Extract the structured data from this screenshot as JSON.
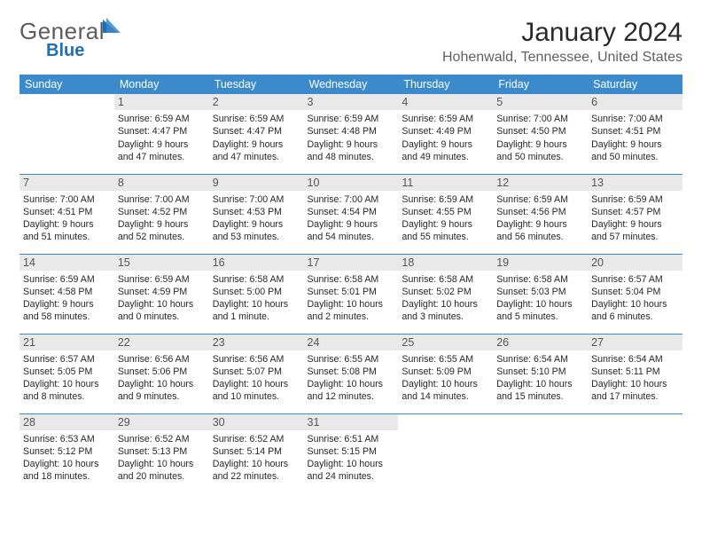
{
  "colors": {
    "header_bg": "#3b8acb",
    "header_text": "#ffffff",
    "daynum_bg": "#e9e9e9",
    "daynum_text": "#555555",
    "body_text": "#272727",
    "rule": "#3b8acb",
    "logo_gray": "#5c5c5c",
    "logo_blue": "#1f6fb2",
    "title_text": "#2a2a2a",
    "subtitle_text": "#606060"
  },
  "logo": {
    "word1": "General",
    "word2": "Blue"
  },
  "title": "January 2024",
  "location": "Hohenwald, Tennessee, United States",
  "weekdays": [
    "Sunday",
    "Monday",
    "Tuesday",
    "Wednesday",
    "Thursday",
    "Friday",
    "Saturday"
  ],
  "weeks": [
    [
      {
        "n": "",
        "lines": [
          "",
          "",
          "",
          ""
        ]
      },
      {
        "n": "1",
        "lines": [
          "Sunrise: 6:59 AM",
          "Sunset: 4:47 PM",
          "Daylight: 9 hours",
          "and 47 minutes."
        ]
      },
      {
        "n": "2",
        "lines": [
          "Sunrise: 6:59 AM",
          "Sunset: 4:47 PM",
          "Daylight: 9 hours",
          "and 47 minutes."
        ]
      },
      {
        "n": "3",
        "lines": [
          "Sunrise: 6:59 AM",
          "Sunset: 4:48 PM",
          "Daylight: 9 hours",
          "and 48 minutes."
        ]
      },
      {
        "n": "4",
        "lines": [
          "Sunrise: 6:59 AM",
          "Sunset: 4:49 PM",
          "Daylight: 9 hours",
          "and 49 minutes."
        ]
      },
      {
        "n": "5",
        "lines": [
          "Sunrise: 7:00 AM",
          "Sunset: 4:50 PM",
          "Daylight: 9 hours",
          "and 50 minutes."
        ]
      },
      {
        "n": "6",
        "lines": [
          "Sunrise: 7:00 AM",
          "Sunset: 4:51 PM",
          "Daylight: 9 hours",
          "and 50 minutes."
        ]
      }
    ],
    [
      {
        "n": "7",
        "lines": [
          "Sunrise: 7:00 AM",
          "Sunset: 4:51 PM",
          "Daylight: 9 hours",
          "and 51 minutes."
        ]
      },
      {
        "n": "8",
        "lines": [
          "Sunrise: 7:00 AM",
          "Sunset: 4:52 PM",
          "Daylight: 9 hours",
          "and 52 minutes."
        ]
      },
      {
        "n": "9",
        "lines": [
          "Sunrise: 7:00 AM",
          "Sunset: 4:53 PM",
          "Daylight: 9 hours",
          "and 53 minutes."
        ]
      },
      {
        "n": "10",
        "lines": [
          "Sunrise: 7:00 AM",
          "Sunset: 4:54 PM",
          "Daylight: 9 hours",
          "and 54 minutes."
        ]
      },
      {
        "n": "11",
        "lines": [
          "Sunrise: 6:59 AM",
          "Sunset: 4:55 PM",
          "Daylight: 9 hours",
          "and 55 minutes."
        ]
      },
      {
        "n": "12",
        "lines": [
          "Sunrise: 6:59 AM",
          "Sunset: 4:56 PM",
          "Daylight: 9 hours",
          "and 56 minutes."
        ]
      },
      {
        "n": "13",
        "lines": [
          "Sunrise: 6:59 AM",
          "Sunset: 4:57 PM",
          "Daylight: 9 hours",
          "and 57 minutes."
        ]
      }
    ],
    [
      {
        "n": "14",
        "lines": [
          "Sunrise: 6:59 AM",
          "Sunset: 4:58 PM",
          "Daylight: 9 hours",
          "and 58 minutes."
        ]
      },
      {
        "n": "15",
        "lines": [
          "Sunrise: 6:59 AM",
          "Sunset: 4:59 PM",
          "Daylight: 10 hours",
          "and 0 minutes."
        ]
      },
      {
        "n": "16",
        "lines": [
          "Sunrise: 6:58 AM",
          "Sunset: 5:00 PM",
          "Daylight: 10 hours",
          "and 1 minute."
        ]
      },
      {
        "n": "17",
        "lines": [
          "Sunrise: 6:58 AM",
          "Sunset: 5:01 PM",
          "Daylight: 10 hours",
          "and 2 minutes."
        ]
      },
      {
        "n": "18",
        "lines": [
          "Sunrise: 6:58 AM",
          "Sunset: 5:02 PM",
          "Daylight: 10 hours",
          "and 3 minutes."
        ]
      },
      {
        "n": "19",
        "lines": [
          "Sunrise: 6:58 AM",
          "Sunset: 5:03 PM",
          "Daylight: 10 hours",
          "and 5 minutes."
        ]
      },
      {
        "n": "20",
        "lines": [
          "Sunrise: 6:57 AM",
          "Sunset: 5:04 PM",
          "Daylight: 10 hours",
          "and 6 minutes."
        ]
      }
    ],
    [
      {
        "n": "21",
        "lines": [
          "Sunrise: 6:57 AM",
          "Sunset: 5:05 PM",
          "Daylight: 10 hours",
          "and 8 minutes."
        ]
      },
      {
        "n": "22",
        "lines": [
          "Sunrise: 6:56 AM",
          "Sunset: 5:06 PM",
          "Daylight: 10 hours",
          "and 9 minutes."
        ]
      },
      {
        "n": "23",
        "lines": [
          "Sunrise: 6:56 AM",
          "Sunset: 5:07 PM",
          "Daylight: 10 hours",
          "and 10 minutes."
        ]
      },
      {
        "n": "24",
        "lines": [
          "Sunrise: 6:55 AM",
          "Sunset: 5:08 PM",
          "Daylight: 10 hours",
          "and 12 minutes."
        ]
      },
      {
        "n": "25",
        "lines": [
          "Sunrise: 6:55 AM",
          "Sunset: 5:09 PM",
          "Daylight: 10 hours",
          "and 14 minutes."
        ]
      },
      {
        "n": "26",
        "lines": [
          "Sunrise: 6:54 AM",
          "Sunset: 5:10 PM",
          "Daylight: 10 hours",
          "and 15 minutes."
        ]
      },
      {
        "n": "27",
        "lines": [
          "Sunrise: 6:54 AM",
          "Sunset: 5:11 PM",
          "Daylight: 10 hours",
          "and 17 minutes."
        ]
      }
    ],
    [
      {
        "n": "28",
        "lines": [
          "Sunrise: 6:53 AM",
          "Sunset: 5:12 PM",
          "Daylight: 10 hours",
          "and 18 minutes."
        ]
      },
      {
        "n": "29",
        "lines": [
          "Sunrise: 6:52 AM",
          "Sunset: 5:13 PM",
          "Daylight: 10 hours",
          "and 20 minutes."
        ]
      },
      {
        "n": "30",
        "lines": [
          "Sunrise: 6:52 AM",
          "Sunset: 5:14 PM",
          "Daylight: 10 hours",
          "and 22 minutes."
        ]
      },
      {
        "n": "31",
        "lines": [
          "Sunrise: 6:51 AM",
          "Sunset: 5:15 PM",
          "Daylight: 10 hours",
          "and 24 minutes."
        ]
      },
      {
        "n": "",
        "lines": [
          "",
          "",
          "",
          ""
        ]
      },
      {
        "n": "",
        "lines": [
          "",
          "",
          "",
          ""
        ]
      },
      {
        "n": "",
        "lines": [
          "",
          "",
          "",
          ""
        ]
      }
    ]
  ]
}
